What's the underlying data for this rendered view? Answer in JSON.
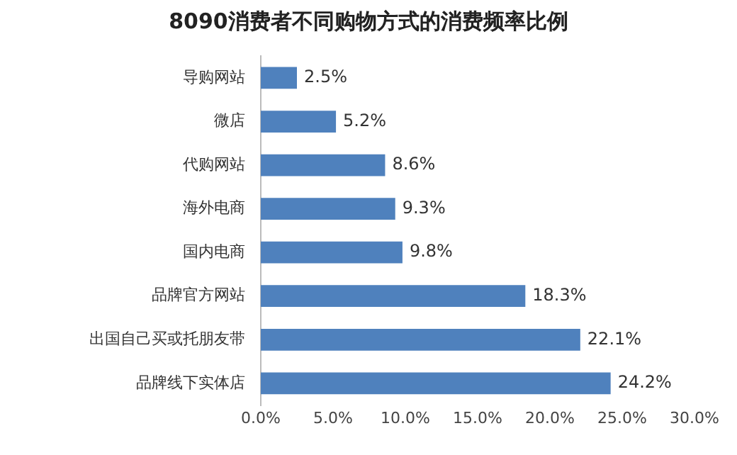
{
  "chart_data": {
    "type": "bar",
    "orientation": "horizontal",
    "title": "8090消费者不同购物方式的消费频率比例",
    "categories": [
      "导购网站",
      "微店",
      "代购网站",
      "海外电商",
      "国内电商",
      "品牌官方网站",
      "出国自己买或托朋友带",
      "品牌线下实体店"
    ],
    "values": [
      2.5,
      5.2,
      8.6,
      9.3,
      9.8,
      18.3,
      22.1,
      24.2
    ],
    "value_labels": [
      "2.5%",
      "5.2%",
      "8.6%",
      "9.3%",
      "9.8%",
      "18.3%",
      "22.1%",
      "24.2%"
    ],
    "color": "#4f81bd",
    "xlim": [
      0,
      30
    ],
    "xticks": [
      {
        "value": 0,
        "label": "0.0%"
      },
      {
        "value": 5,
        "label": "5.0%"
      },
      {
        "value": 10,
        "label": "10.0%"
      },
      {
        "value": 15,
        "label": "15.0%"
      },
      {
        "value": 20,
        "label": "20.0%"
      },
      {
        "value": 25,
        "label": "25.0%"
      },
      {
        "value": 30,
        "label": "30.0%"
      }
    ],
    "grid": false,
    "legend": false
  }
}
